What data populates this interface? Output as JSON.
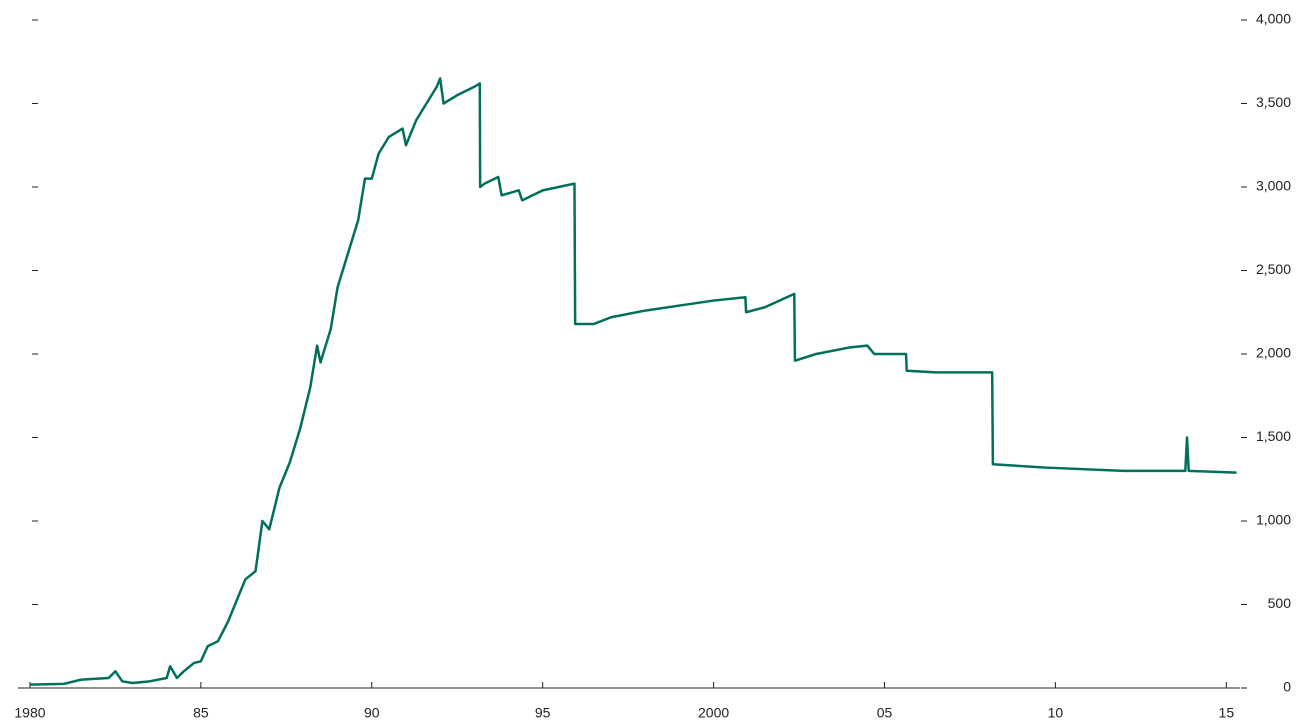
{
  "chart_data": {
    "type": "line",
    "color": "#00705a",
    "x": [
      1980,
      1981,
      1981.5,
      1982.3,
      1982.5,
      1982.7,
      1983,
      1983.5,
      1984,
      1984.1,
      1984.3,
      1984.5,
      1984.8,
      1985,
      1985.2,
      1985.5,
      1985.8,
      1986,
      1986.3,
      1986.6,
      1986.8,
      1987,
      1987.3,
      1987.6,
      1987.9,
      1988.2,
      1988.4,
      1988.5,
      1988.8,
      1989,
      1989.3,
      1989.6,
      1989.8,
      1990,
      1990.2,
      1990.5,
      1990.9,
      1991,
      1991.3,
      1991.6,
      1991.9,
      1992,
      1992.1,
      1992.5,
      1993,
      1993.16,
      1993.17,
      1993.3,
      1993.7,
      1993.8,
      1994.3,
      1994.4,
      1995,
      1995.93,
      1995.95,
      1996.5,
      1997,
      1998,
      1999,
      2000,
      2000.93,
      2000.95,
      2001.5,
      2002.36,
      2002.38,
      2003,
      2004,
      2004.5,
      2004.7,
      2005.63,
      2005.65,
      2006.5,
      2008.15,
      2008.17,
      2009.7,
      2012,
      2013.8,
      2013.85,
      2013.9,
      2015.3
    ],
    "series": [
      {
        "values": [
          20,
          25,
          50,
          60,
          100,
          40,
          30,
          40,
          60,
          130,
          60,
          100,
          150,
          160,
          250,
          280,
          400,
          500,
          650,
          700,
          1000,
          950,
          1200,
          1350,
          1550,
          1800,
          2050,
          1950,
          2150,
          2400,
          2600,
          2800,
          3050,
          3050,
          3200,
          3300,
          3350,
          3250,
          3400,
          3500,
          3600,
          3650,
          3500,
          3550,
          3600,
          3620,
          3000,
          3020,
          3060,
          2950,
          2980,
          2920,
          2980,
          3020,
          2180,
          2180,
          2220,
          2260,
          2290,
          2320,
          2340,
          2250,
          2280,
          2360,
          1960,
          2000,
          2040,
          2050,
          2000,
          2000,
          1900,
          1890,
          1890,
          1340,
          1320,
          1300,
          1300,
          1500,
          1300,
          1290
        ]
      }
    ],
    "xlim": [
      1979.65,
      2015.4
    ],
    "xticks": [
      1980,
      {
        "value": 1985,
        "label": "85"
      },
      {
        "value": 1990,
        "label": "90"
      },
      {
        "value": 1995,
        "label": "95"
      },
      2000,
      {
        "value": 2005,
        "label": "05"
      },
      {
        "value": 2010,
        "label": "10"
      },
      {
        "value": 2015,
        "label": "15"
      }
    ],
    "ylim": [
      0,
      4000
    ],
    "yticks": [
      0,
      500,
      {
        "value": 1000,
        "label": "1,000"
      },
      {
        "value": 1500,
        "label": "1,500"
      },
      {
        "value": 2000,
        "label": "2,000"
      },
      {
        "value": 2500,
        "label": "2,500"
      },
      {
        "value": 3000,
        "label": "3,000"
      },
      {
        "value": 3500,
        "label": "3,500"
      },
      {
        "value": 4000,
        "label": "4,000"
      }
    ]
  }
}
